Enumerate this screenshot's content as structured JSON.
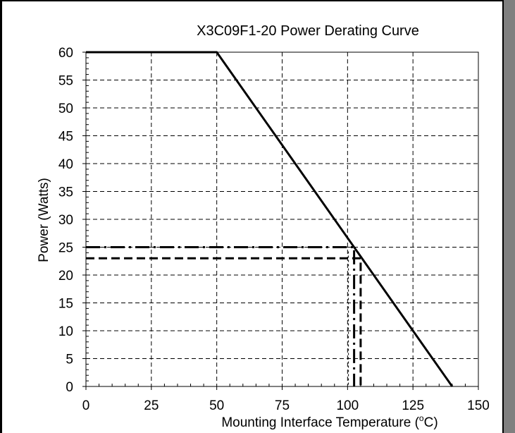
{
  "chart_data": {
    "type": "line",
    "title": "X3C09F1-20 Power Derating Curve",
    "xlabel": "Mounting Interface Temperature (",
    "xlabel_sup": "o",
    "xlabel_suffix": "C)",
    "ylabel": "Power (Watts)",
    "xlim": [
      0,
      150
    ],
    "ylim": [
      0,
      60
    ],
    "x_ticks": [
      0,
      25,
      50,
      75,
      100,
      125,
      150
    ],
    "y_ticks": [
      0,
      5,
      10,
      15,
      20,
      25,
      30,
      35,
      40,
      45,
      50,
      55,
      60
    ],
    "grid": true,
    "legend": "none",
    "series": [
      {
        "x": [
          0,
          50,
          140
        ],
        "y": [
          60,
          60,
          0
        ],
        "style": "solid",
        "color": "#000000"
      }
    ],
    "annotations": [
      {
        "style": "dashdot",
        "x": [
          0,
          102.5,
          102.5
        ],
        "y": [
          25,
          25,
          0
        ]
      },
      {
        "style": "dashed",
        "x": [
          0,
          105,
          105
        ],
        "y": [
          23,
          23,
          0
        ]
      }
    ]
  }
}
